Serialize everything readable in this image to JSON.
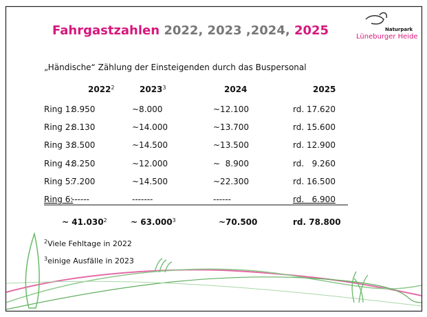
{
  "header": {
    "title": {
      "part1": "Fahrgastzahlen",
      "part2": "2022, 2023 ,2024,",
      "part3": "2025"
    },
    "logo": {
      "line1": "Naturpark",
      "line2": "Lüneburger Heide"
    }
  },
  "subtitle": "„Händische“ Zählung der Einsteigenden durch das Buspersonal",
  "table": {
    "columns": [
      {
        "text": "2022",
        "sup": "2"
      },
      {
        "text": "2023",
        "sup": "3"
      },
      {
        "text": "2024"
      },
      {
        "text": "2025"
      }
    ],
    "rows": [
      [
        "Ring 1:",
        "8.950",
        "~8.000",
        "~12.100",
        "rd. 17.620"
      ],
      [
        "Ring 2:",
        "8.130",
        "~14.000",
        "~13.700",
        "rd. 15.600"
      ],
      [
        "Ring 3:",
        "8.500",
        "~14.500",
        "~13.500",
        "rd. 12.900"
      ],
      [
        "Ring 4:",
        "8.250",
        "~12.000",
        "~  8.900",
        "rd.   9.260"
      ],
      [
        "Ring 5:",
        "7.200",
        "~14.500",
        "~22.300",
        "rd. 16.500"
      ],
      [
        "Ring 6:",
        "------",
        "-------",
        "------",
        "rd.   6.900"
      ]
    ],
    "totals": [
      {
        "text": "~ 41.030",
        "sup": "2"
      },
      {
        "text": "~ 63.000",
        "sup": "3"
      },
      {
        "text": "~70.500"
      },
      {
        "text": "rd. 78.800"
      }
    ]
  },
  "footnotes": [
    {
      "sup": "2",
      "text": "Viele Fehltage in 2022"
    },
    {
      "sup": "3",
      "text": "einige Ausfälle in 2023"
    }
  ]
}
